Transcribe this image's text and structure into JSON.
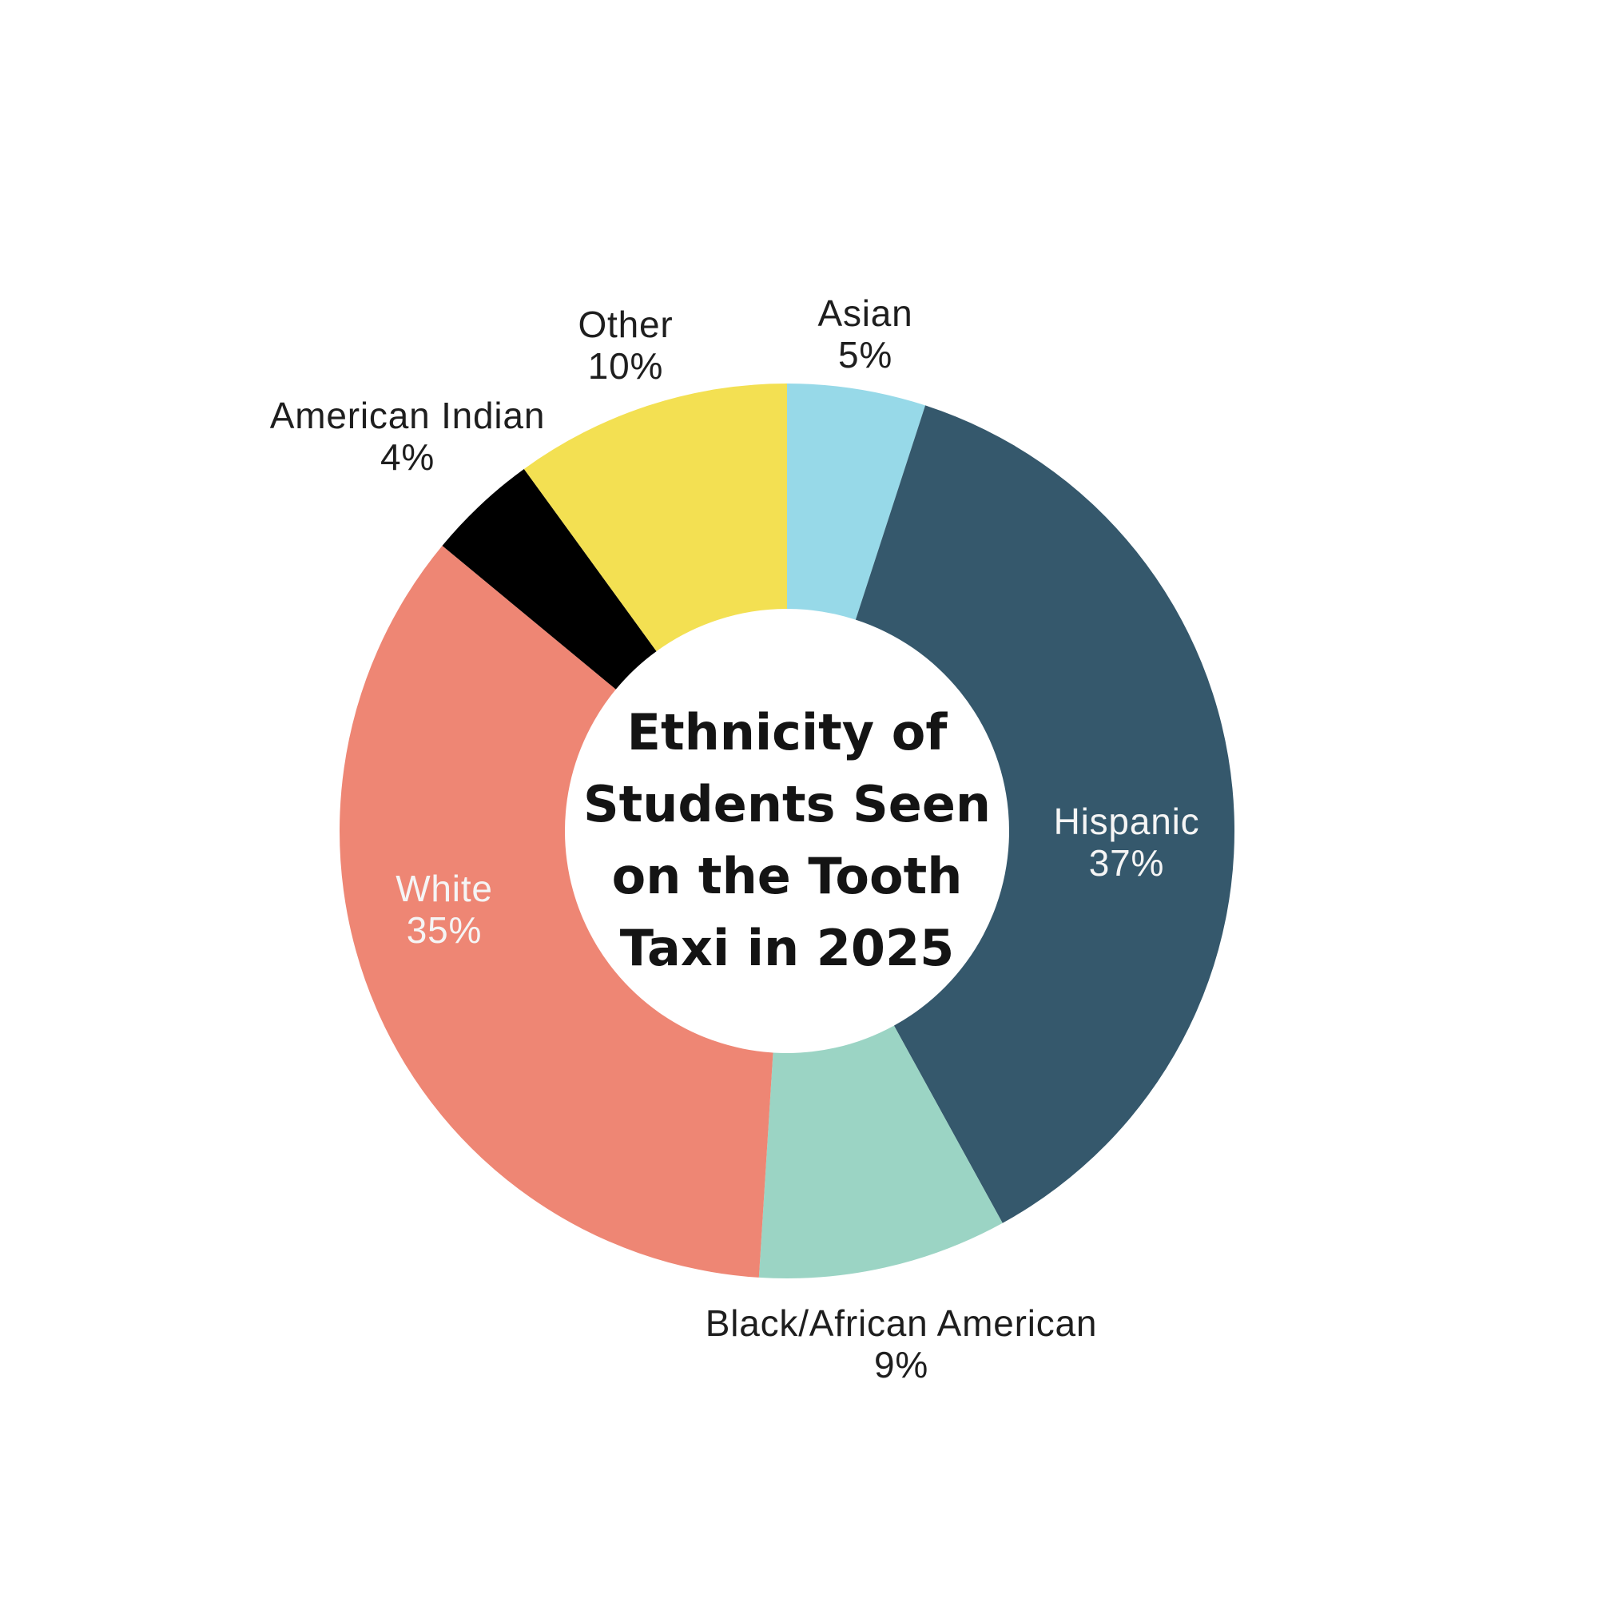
{
  "page": {
    "background_color": "#ffffff"
  },
  "chart_data": {
    "type": "pie",
    "variant": "donut",
    "title": "Ethnicity of Students Seen on the Tooth Taxi in 2025",
    "title_lines": [
      "Ethnicity of",
      "Students Seen",
      "on the Tooth",
      "Taxi in 2025"
    ],
    "legend": "none",
    "start_position": "top",
    "direction": "clockwise",
    "hole_color": "#ffffff",
    "slices": [
      {
        "label": "Asian",
        "value_pct": 5,
        "pct_label": "5%",
        "color": "#97d9e8",
        "label_placement": "outside",
        "label_color": "#1e1e1e"
      },
      {
        "label": "Hispanic",
        "value_pct": 37,
        "pct_label": "37%",
        "color": "#35586c",
        "label_placement": "inside",
        "label_color": "#f5f5f5"
      },
      {
        "label": "Black/African American",
        "value_pct": 9,
        "pct_label": "9%",
        "color": "#9bd4c4",
        "label_placement": "outside",
        "label_color": "#1e1e1e"
      },
      {
        "label": "White",
        "value_pct": 35,
        "pct_label": "35%",
        "color": "#ee8674",
        "label_placement": "inside",
        "label_color": "#f5f5f5"
      },
      {
        "label": "American Indian",
        "value_pct": 4,
        "pct_label": "4%",
        "color": "#000000",
        "label_placement": "outside",
        "label_color": "#1e1e1e"
      },
      {
        "label": "Other",
        "value_pct": 10,
        "pct_label": "10%",
        "color": "#f3e052",
        "label_placement": "outside",
        "label_color": "#1e1e1e"
      }
    ]
  }
}
